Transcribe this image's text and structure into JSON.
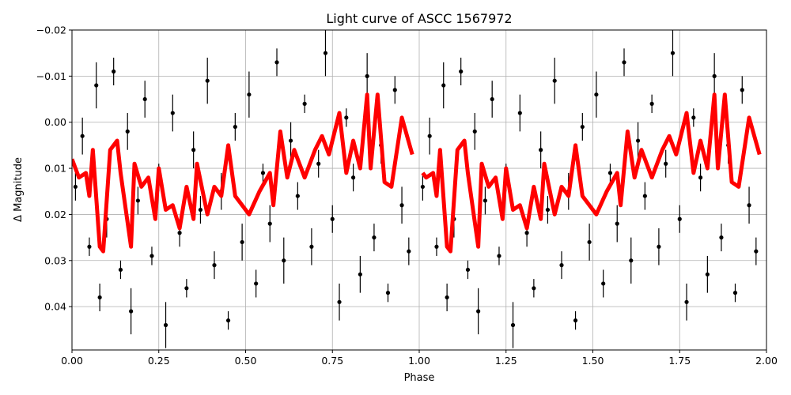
{
  "chart_data": {
    "type": "errorbar",
    "title": "Light curve of ASCC 1567972",
    "xlabel": "Phase",
    "ylabel": "Δ Magnitude",
    "xlim": [
      0,
      2
    ],
    "ylim": [
      0.0494,
      -0.02
    ],
    "xticks": [
      {
        "value": 0,
        "label": "0.00"
      },
      0.25,
      {
        "value": 0.5,
        "label": "0.50"
      },
      0.75,
      {
        "value": 1,
        "label": "1.00"
      },
      1.25,
      {
        "value": 1.5,
        "label": "1.50"
      },
      1.75,
      {
        "value": 2,
        "label": "2.00"
      }
    ],
    "yticks": [
      {
        "value": -0.02,
        "label": "−0.02"
      },
      {
        "value": -0.01,
        "label": "−0.01"
      },
      {
        "value": 0,
        "label": "0.00"
      },
      0.01,
      0.02,
      0.03,
      0.04
    ],
    "grid": true,
    "series": [
      {
        "type": "errorbar",
        "color": "#000000",
        "x": [
          0.01,
          0.03,
          0.05,
          0.07,
          0.08,
          0.1,
          0.12,
          0.14,
          0.16,
          0.17,
          0.19,
          0.21,
          0.23,
          0.25,
          0.27,
          0.29,
          0.31,
          0.33,
          0.35,
          0.37,
          0.39,
          0.41,
          0.43,
          0.45,
          0.47,
          0.49,
          0.51,
          0.53,
          0.55,
          0.57,
          0.59,
          0.61,
          0.63,
          0.65,
          0.67,
          0.69,
          0.71,
          0.73,
          0.75,
          0.77,
          0.79,
          0.81,
          0.83,
          0.85,
          0.87,
          0.89,
          0.91,
          0.93,
          0.95,
          0.97,
          1.01,
          1.03,
          1.05,
          1.07,
          1.08,
          1.1,
          1.12,
          1.14,
          1.16,
          1.17,
          1.19,
          1.21,
          1.23,
          1.25,
          1.27,
          1.29,
          1.31,
          1.33,
          1.35,
          1.37,
          1.39,
          1.41,
          1.43,
          1.45,
          1.47,
          1.49,
          1.51,
          1.53,
          1.55,
          1.57,
          1.59,
          1.61,
          1.63,
          1.65,
          1.67,
          1.69,
          1.71,
          1.73,
          1.75,
          1.77,
          1.79,
          1.81,
          1.83,
          1.85,
          1.87,
          1.89,
          1.91,
          1.93,
          1.95,
          1.97
        ],
        "values": [
          0.014,
          0.003,
          0.027,
          -0.008,
          0.038,
          0.021,
          -0.011,
          0.032,
          0.002,
          0.041,
          0.017,
          -0.005,
          0.029,
          0.012,
          0.044,
          -0.002,
          0.024,
          0.036,
          0.006,
          0.019,
          -0.009,
          0.031,
          0.015,
          0.043,
          0.001,
          0.026,
          -0.006,
          0.035,
          0.011,
          0.022,
          -0.013,
          0.03,
          0.004,
          0.016,
          -0.004,
          0.027,
          0.009,
          -0.015,
          0.021,
          0.039,
          -0.001,
          0.012,
          0.033,
          -0.01,
          0.025,
          0.005,
          0.037,
          -0.007,
          0.018,
          0.028,
          0.014,
          0.003,
          0.027,
          -0.008,
          0.038,
          0.021,
          -0.011,
          0.032,
          0.002,
          0.041,
          0.017,
          -0.005,
          0.029,
          0.012,
          0.044,
          -0.002,
          0.024,
          0.036,
          0.006,
          0.019,
          -0.009,
          0.031,
          0.015,
          0.043,
          0.001,
          0.026,
          -0.006,
          0.035,
          0.011,
          0.022,
          -0.013,
          0.03,
          0.004,
          0.016,
          -0.004,
          0.027,
          0.009,
          -0.015,
          0.021,
          0.039,
          -0.001,
          0.012,
          0.033,
          -0.01,
          0.025,
          0.005,
          0.037,
          -0.007,
          0.018,
          0.028
        ],
        "errors": [
          0.003,
          0.004,
          0.002,
          0.005,
          0.003,
          0.004,
          0.003,
          0.002,
          0.004,
          0.005,
          0.003,
          0.004,
          0.002,
          0.003,
          0.005,
          0.004,
          0.003,
          0.002,
          0.004,
          0.003,
          0.005,
          0.003,
          0.004,
          0.002,
          0.003,
          0.004,
          0.005,
          0.003,
          0.002,
          0.004,
          0.003,
          0.005,
          0.004,
          0.003,
          0.002,
          0.004,
          0.003,
          0.005,
          0.003,
          0.004,
          0.002,
          0.003,
          0.004,
          0.005,
          0.003,
          0.004,
          0.002,
          0.003,
          0.004,
          0.003,
          0.003,
          0.004,
          0.002,
          0.005,
          0.003,
          0.004,
          0.003,
          0.002,
          0.004,
          0.005,
          0.003,
          0.004,
          0.002,
          0.003,
          0.005,
          0.004,
          0.003,
          0.002,
          0.004,
          0.003,
          0.005,
          0.003,
          0.004,
          0.002,
          0.003,
          0.004,
          0.005,
          0.003,
          0.002,
          0.004,
          0.003,
          0.005,
          0.004,
          0.003,
          0.002,
          0.004,
          0.003,
          0.005,
          0.003,
          0.004,
          0.002,
          0.003,
          0.004,
          0.005,
          0.003,
          0.004,
          0.002,
          0.003,
          0.004,
          0.003
        ]
      },
      {
        "type": "line",
        "color": "#ff0000",
        "x": [
          0.0,
          0.02,
          0.04,
          0.05,
          0.06,
          0.08,
          0.09,
          0.11,
          0.13,
          0.14,
          0.17,
          0.18,
          0.2,
          0.22,
          0.24,
          0.25,
          0.27,
          0.29,
          0.31,
          0.33,
          0.35,
          0.36,
          0.39,
          0.41,
          0.43,
          0.45,
          0.47,
          0.49,
          0.51,
          0.54,
          0.57,
          0.58,
          0.6,
          0.62,
          0.64,
          0.67,
          0.7,
          0.72,
          0.74,
          0.77,
          0.79,
          0.81,
          0.83,
          0.85,
          0.86,
          0.88,
          0.9,
          0.92,
          0.95,
          0.98,
          null,
          1.01,
          1.02,
          1.04,
          1.05,
          1.06,
          1.08,
          1.09,
          1.11,
          1.13,
          1.14,
          1.17,
          1.18,
          1.2,
          1.22,
          1.24,
          1.25,
          1.27,
          1.29,
          1.31,
          1.33,
          1.35,
          1.36,
          1.39,
          1.41,
          1.43,
          1.45,
          1.47,
          1.49,
          1.51,
          1.54,
          1.57,
          1.58,
          1.6,
          1.62,
          1.64,
          1.67,
          1.7,
          1.72,
          1.74,
          1.77,
          1.79,
          1.81,
          1.83,
          1.85,
          1.86,
          1.88,
          1.9,
          1.92,
          1.95,
          1.98
        ],
        "values": [
          0.008,
          0.012,
          0.011,
          0.016,
          0.006,
          0.027,
          0.028,
          0.006,
          0.004,
          0.011,
          0.027,
          0.009,
          0.014,
          0.012,
          0.021,
          0.01,
          0.019,
          0.018,
          0.023,
          0.014,
          0.021,
          0.009,
          0.02,
          0.014,
          0.016,
          0.005,
          0.016,
          0.018,
          0.02,
          0.015,
          0.011,
          0.018,
          0.002,
          0.012,
          0.006,
          0.012,
          0.006,
          0.003,
          0.007,
          -0.002,
          0.011,
          0.004,
          0.01,
          -0.006,
          0.01,
          -0.006,
          0.013,
          0.014,
          -0.001,
          0.007,
          null,
          0.011,
          0.012,
          0.011,
          0.016,
          0.006,
          0.027,
          0.028,
          0.006,
          0.004,
          0.011,
          0.027,
          0.009,
          0.014,
          0.012,
          0.021,
          0.01,
          0.019,
          0.018,
          0.023,
          0.014,
          0.021,
          0.009,
          0.02,
          0.014,
          0.016,
          0.005,
          0.016,
          0.018,
          0.02,
          0.015,
          0.011,
          0.018,
          0.002,
          0.012,
          0.006,
          0.012,
          0.006,
          0.003,
          0.007,
          -0.002,
          0.011,
          0.004,
          0.01,
          -0.006,
          0.01,
          -0.006,
          0.013,
          0.014,
          -0.001,
          0.007
        ]
      }
    ]
  }
}
